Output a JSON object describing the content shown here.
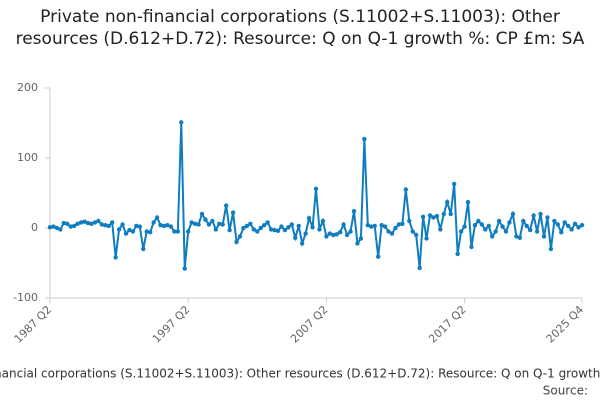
{
  "chart_data": {
    "type": "line",
    "title": "Private non-financial corporations (S.11002+S.11003): Other resources (D.612+D.72): Resource: Q on Q-1 growth %: CP £m: SA",
    "source": "Source:",
    "categories": [
      "1987 Q2",
      null,
      null,
      null,
      null,
      null,
      null,
      null,
      null,
      null,
      null,
      null,
      null,
      null,
      null,
      null,
      null,
      null,
      null,
      null,
      null,
      null,
      null,
      null,
      null,
      null,
      null,
      null,
      null,
      null,
      null,
      null,
      null,
      null,
      null,
      null,
      null,
      null,
      null,
      null,
      "1997 Q2",
      null,
      null,
      null,
      null,
      null,
      null,
      null,
      null,
      null,
      null,
      null,
      null,
      null,
      null,
      null,
      null,
      null,
      null,
      null,
      null,
      null,
      null,
      null,
      null,
      null,
      null,
      null,
      null,
      null,
      null,
      null,
      null,
      null,
      null,
      null,
      null,
      null,
      null,
      null,
      "2007 Q2",
      null,
      null,
      null,
      null,
      null,
      null,
      null,
      null,
      null,
      null,
      null,
      null,
      null,
      null,
      null,
      null,
      null,
      null,
      null,
      null,
      null,
      null,
      null,
      null,
      null,
      null,
      null,
      null,
      null,
      null,
      null,
      null,
      null,
      null,
      null,
      null,
      null,
      null,
      null,
      "2017 Q2",
      null,
      null,
      null,
      null,
      null,
      null,
      null,
      null,
      null,
      null,
      null,
      null,
      null,
      null,
      null,
      null,
      null,
      null,
      null,
      null,
      null,
      null,
      null,
      null,
      null,
      null,
      null,
      null,
      null,
      null,
      null,
      null,
      null,
      "2025 Q4"
    ],
    "series": [
      {
        "name": "Private non-financial corporations (S.11002+S.11003): Other resources (D.612+D.72): Resource: Q on Q-1 growth %: CP £m: SA",
        "color": "#0f7dbf",
        "values": [
          1,
          2,
          0,
          -2,
          7,
          6,
          2,
          3,
          6,
          8,
          9,
          7,
          6,
          8,
          10,
          5,
          4,
          3,
          8,
          -42,
          -2,
          5,
          -8,
          -3,
          -5,
          3,
          2,
          -30,
          -5,
          -6,
          8,
          15,
          4,
          3,
          4,
          2,
          -5,
          -5,
          151,
          -58,
          -5,
          8,
          6,
          5,
          20,
          12,
          5,
          10,
          -2,
          6,
          5,
          32,
          -3,
          22,
          -20,
          -12,
          0,
          3,
          6,
          -2,
          -5,
          0,
          4,
          8,
          -2,
          -3,
          -4,
          2,
          -3,
          1,
          5,
          -14,
          3,
          -22,
          -8,
          14,
          1,
          56,
          -2,
          10,
          -12,
          -8,
          -10,
          -9,
          -6,
          5,
          -10,
          -5,
          24,
          -22,
          -15,
          127,
          4,
          2,
          3,
          -41,
          4,
          2,
          -5,
          -8,
          0,
          5,
          6,
          55,
          10,
          -5,
          -10,
          -57,
          16,
          -15,
          18,
          15,
          17,
          -2,
          20,
          37,
          20,
          63,
          -37,
          -5,
          2,
          37,
          -27,
          4,
          10,
          5,
          -2,
          3,
          -12,
          -5,
          10,
          2,
          -5,
          8,
          20,
          -12,
          -14,
          10,
          3,
          -3,
          18,
          -5,
          20,
          -12,
          15,
          -30,
          10,
          5,
          -6,
          8,
          3,
          -2,
          6,
          1,
          4
        ]
      }
    ],
    "ylim": [
      -100,
      200
    ],
    "yticks": [
      -100,
      0,
      100,
      200
    ],
    "grid": false
  }
}
